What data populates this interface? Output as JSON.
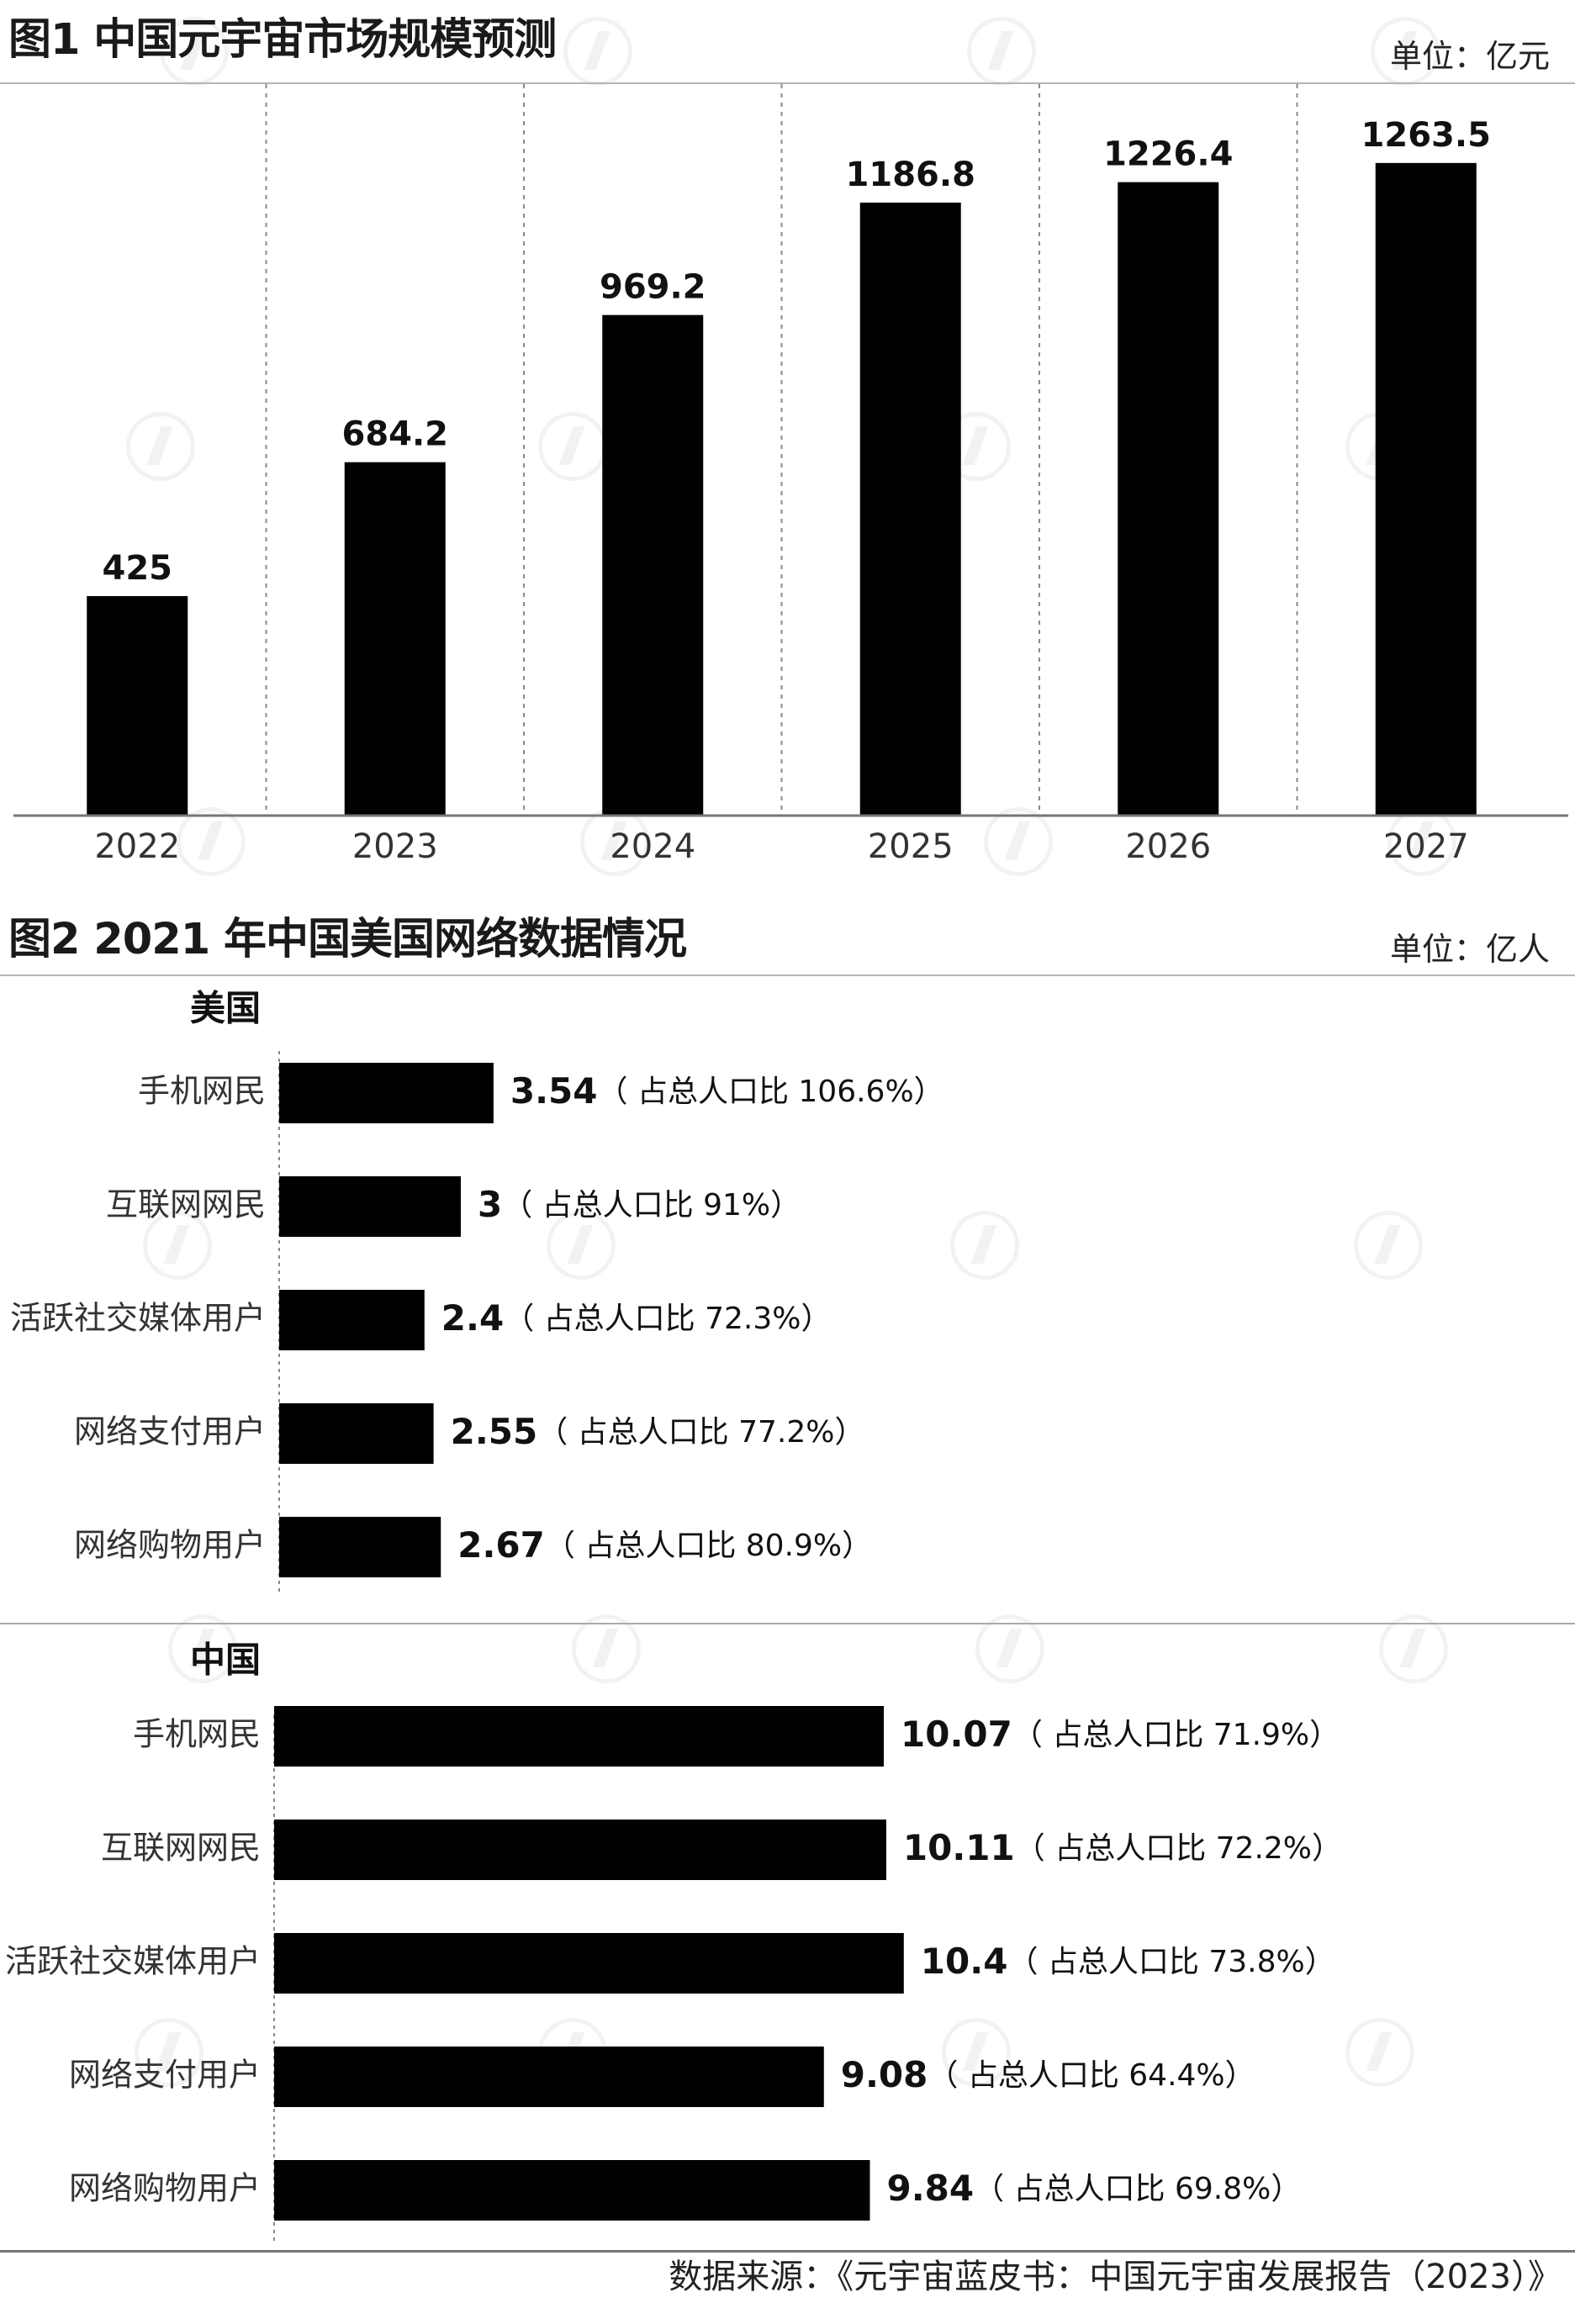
{
  "figure1": {
    "title": "图1 中国元宇宙市场规模预测",
    "unit": "单位：亿元",
    "chart_data": {
      "type": "bar",
      "title": "图1 中国元宇宙市场规模预测",
      "categories": [
        "2022",
        "2023",
        "2024",
        "2025",
        "2026",
        "2027"
      ],
      "values": [
        425,
        684.2,
        969.2,
        1186.8,
        1226.4,
        1263.5
      ],
      "value_labels": [
        "425",
        "684.2",
        "969.2",
        "1186.8",
        "1226.4",
        "1263.5"
      ],
      "unit": "亿元",
      "ylim": [
        0,
        1400
      ],
      "grid": "vertical dashed separators",
      "color": "#000000"
    }
  },
  "figure2": {
    "title": "图2 2021 年中国美国网络数据情况",
    "unit": "单位：亿人",
    "chart_data": [
      {
        "type": "bar",
        "orientation": "horizontal",
        "group": "美国",
        "categories": [
          "手机网民",
          "互联网网民",
          "活跃社交媒体用户",
          "网络支付用户",
          "网络购物用户"
        ],
        "values": [
          3.54,
          3,
          2.4,
          2.55,
          2.67
        ],
        "value_labels": [
          "3.54",
          "3",
          "2.4",
          "2.55",
          "2.67"
        ],
        "notes": [
          "（ 占总人口比 106.6%）",
          "（ 占总人口比 91%）",
          "（ 占总人口比 72.3%）",
          "（ 占总人口比 77.2%）",
          "（ 占总人口比 80.9%）"
        ],
        "unit": "亿人",
        "color": "#000000"
      },
      {
        "type": "bar",
        "orientation": "horizontal",
        "group": "中国",
        "categories": [
          "手机网民",
          "互联网网民",
          "活跃社交媒体用户",
          "网络支付用户",
          "网络购物用户"
        ],
        "values": [
          10.07,
          10.11,
          10.4,
          9.08,
          9.84
        ],
        "value_labels": [
          "10.07",
          "10.11",
          "10.4",
          "9.08",
          "9.84"
        ],
        "notes": [
          "（ 占总人口比 71.9%）",
          "（ 占总人口比 72.2%）",
          "（ 占总人口比 73.8%）",
          "（ 占总人口比 64.4%）",
          "（ 占总人口比 69.8%）"
        ],
        "unit": "亿人",
        "color": "#000000"
      }
    ]
  },
  "source": "数据来源：《元宇宙蓝皮书：中国元宇宙发展报告（2023）》"
}
